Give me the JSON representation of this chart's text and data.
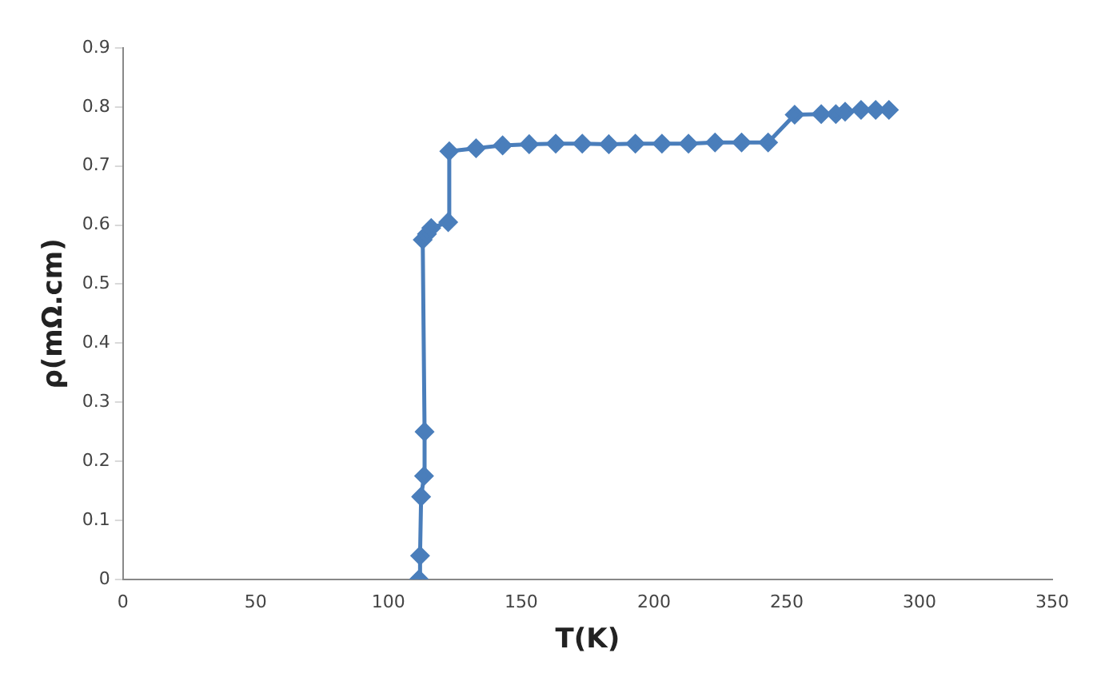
{
  "chart_data": {
    "type": "line",
    "xlabel": "T(K)",
    "ylabel": "ρ(mΩ.cm)",
    "x": [
      111.5,
      111.9,
      112.3,
      113.4,
      113.6,
      112.9,
      114.5,
      116.1,
      122.5,
      122.9,
      133,
      143,
      153,
      163,
      173,
      183,
      193,
      203,
      213,
      223,
      233,
      243,
      253,
      263,
      268.5,
      272,
      278,
      283.5,
      288.5
    ],
    "series": [
      {
        "color": "#4a7ebb",
        "values": [
          0,
          0.04,
          0.14,
          0.175,
          0.25,
          0.575,
          0.585,
          0.595,
          0.605,
          0.725,
          0.73,
          0.735,
          0.737,
          0.738,
          0.738,
          0.737,
          0.738,
          0.738,
          0.738,
          0.74,
          0.74,
          0.74,
          0.787,
          0.788,
          0.788,
          0.792,
          0.795,
          0.795,
          0.795
        ]
      }
    ],
    "xlim": [
      0,
      350
    ],
    "xticks": [
      0,
      50,
      100,
      150,
      200,
      250,
      300,
      350
    ],
    "ylim": [
      0,
      0.9
    ],
    "yticks": [
      0,
      0.1,
      0.2,
      0.3,
      0.4,
      0.5,
      0.6,
      0.7,
      0.8,
      0.9
    ],
    "grid": false,
    "legend": false,
    "marker": "diamond",
    "line_style": "solid"
  }
}
